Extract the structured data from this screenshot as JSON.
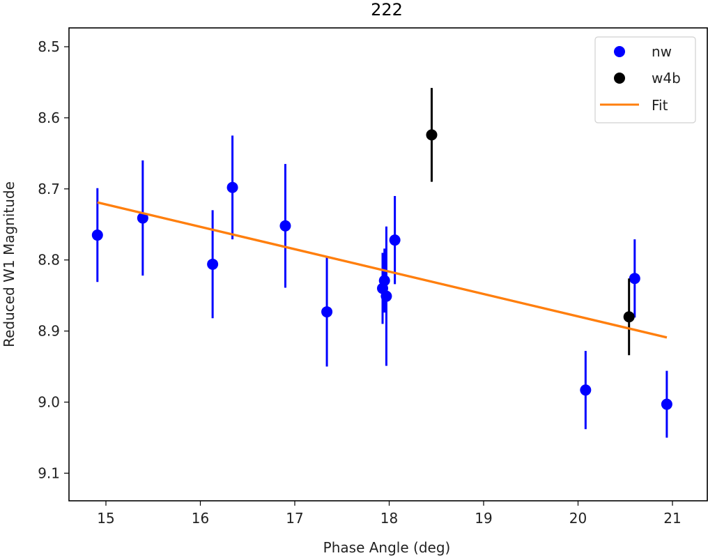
{
  "chart_data": {
    "type": "scatter",
    "title": "222",
    "xlabel": "Phase Angle (deg)",
    "ylabel": "Reduced W1 Magnitude",
    "xlim": [
      14.6,
      21.4
    ],
    "ylim": [
      9.15,
      8.47
    ],
    "y_inverted": true,
    "xticks": [
      15,
      16,
      17,
      18,
      19,
      20,
      21
    ],
    "yticks": [
      8.5,
      8.6,
      8.7,
      8.8,
      8.9,
      9.0,
      9.1
    ],
    "ytick_labels": [
      "8.5",
      "8.6",
      "8.7",
      "8.8",
      "8.9",
      "9.0",
      "9.1"
    ],
    "grid": false,
    "legend_position": "upper right",
    "series": [
      {
        "name": "nw",
        "type": "errorbar",
        "color": "#0000ff",
        "x": [
          14.91,
          15.39,
          16.13,
          16.34,
          16.9,
          17.34,
          17.93,
          17.95,
          17.97,
          18.06,
          20.08,
          20.6,
          20.94
        ],
        "y": [
          8.765,
          8.741,
          8.806,
          8.698,
          8.752,
          8.873,
          8.84,
          8.829,
          8.851,
          8.772,
          8.983,
          8.826,
          9.003
        ],
        "yerr": [
          0.066,
          0.081,
          0.076,
          0.073,
          0.087,
          0.077,
          0.05,
          0.045,
          0.098,
          0.062,
          0.055,
          0.055,
          0.047
        ]
      },
      {
        "name": "w4b",
        "type": "errorbar",
        "color": "#000000",
        "x": [
          18.45,
          20.54
        ],
        "y": [
          8.624,
          8.88
        ],
        "yerr": [
          0.066,
          0.054
        ]
      },
      {
        "name": "Fit",
        "type": "line",
        "color": "#ff7f0e",
        "x": [
          14.91,
          20.94
        ],
        "y": [
          8.719,
          8.909
        ]
      }
    ]
  },
  "legend": {
    "items": [
      {
        "label": "nw",
        "color": "#0000ff",
        "marker": "circle"
      },
      {
        "label": "w4b",
        "color": "#000000",
        "marker": "circle"
      },
      {
        "label": "Fit",
        "color": "#ff7f0e",
        "marker": "line"
      }
    ]
  }
}
